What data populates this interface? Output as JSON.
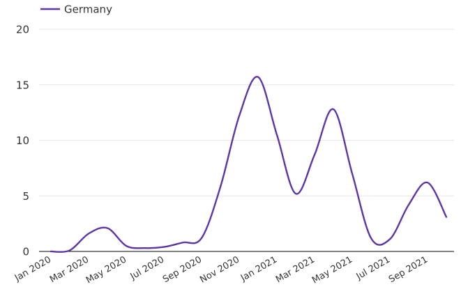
{
  "chart_data": {
    "type": "line",
    "title": "",
    "xlabel": "",
    "ylabel": "",
    "ylim": [
      0,
      20
    ],
    "yticks": [
      0,
      5,
      10,
      15,
      20
    ],
    "grid": true,
    "legend": "top-left",
    "x_tick_labels": [
      "Jan 2020",
      "Mar 2020",
      "May 2020",
      "Jul 2020",
      "Sep 2020",
      "Nov 2020",
      "Jan 2021",
      "Mar 2021",
      "May 2021",
      "Jul 2021",
      "Sep 2021"
    ],
    "x": [
      "Jan 2020",
      "Feb 2020",
      "Mar 2020",
      "Apr 2020",
      "May 2020",
      "Jun 2020",
      "Jul 2020",
      "Aug 2020",
      "Sep 2020",
      "Oct 2020",
      "Nov 2020",
      "Dec 2020",
      "Jan 2021",
      "Feb 2021",
      "Mar 2021",
      "Apr 2021",
      "May 2021",
      "Jun 2021",
      "Jul 2021",
      "Aug 2021",
      "Sep 2021",
      "Oct 2021"
    ],
    "series": [
      {
        "name": "Germany",
        "color": "#5c35a6",
        "values": [
          0,
          0.1,
          1.6,
          2.1,
          0.5,
          0.3,
          0.4,
          0.8,
          1.2,
          5.8,
          12.2,
          15.7,
          10.5,
          5.2,
          8.7,
          12.8,
          7.0,
          1.2,
          1.1,
          4.2,
          6.2,
          3.1
        ]
      }
    ]
  }
}
